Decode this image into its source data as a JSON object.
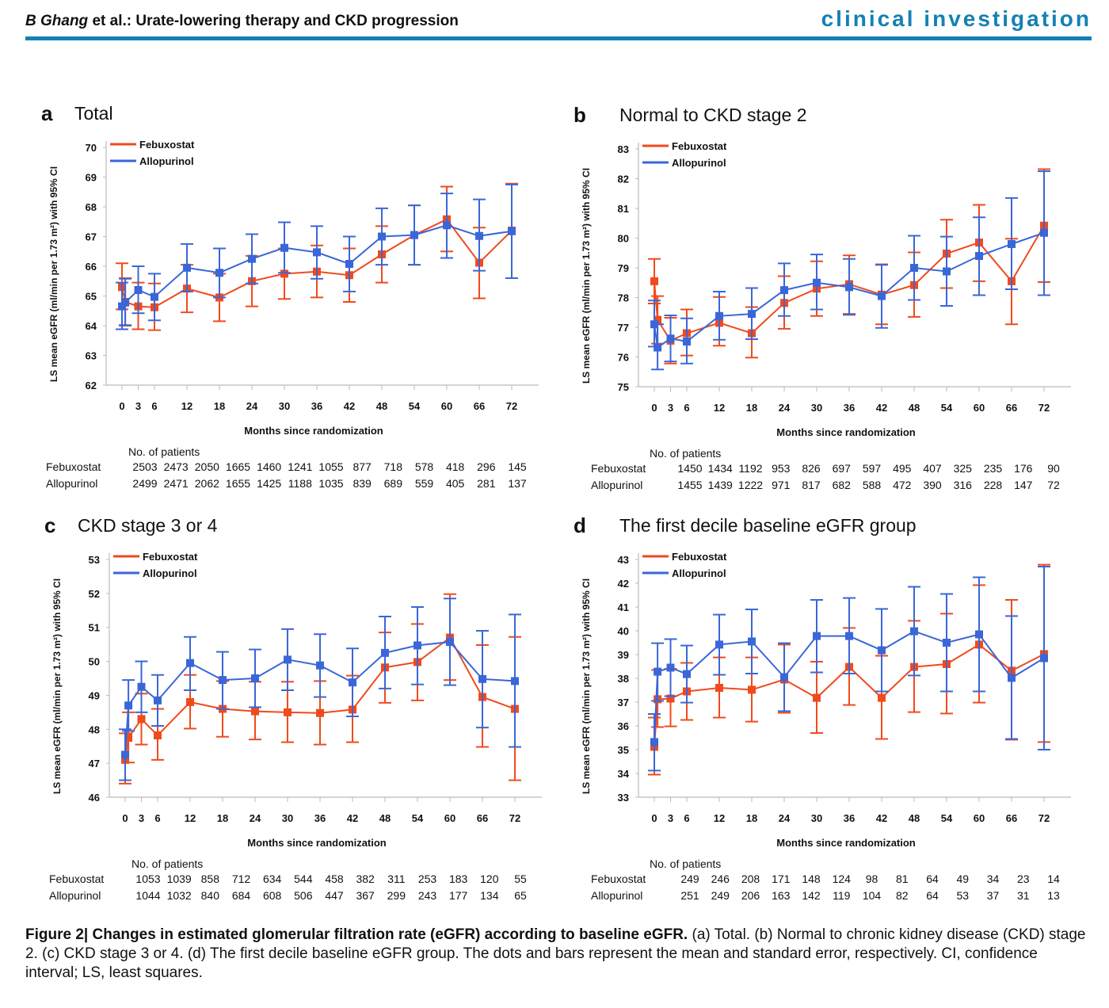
{
  "header": {
    "author": "B Ghang",
    "title_rest": " et al.: Urate-lowering therapy and CKD progression",
    "section": "clinical investigation"
  },
  "colors": {
    "febuxostat": "#f04a1d",
    "allopurinol": "#3a66d8",
    "brand": "#1481b3"
  },
  "caption": {
    "figure_label": "Figure 2",
    "bold_title": "Changes in estimated glomerular filtration rate (eGFR) according to baseline eGFR.",
    "text": " (a) Total. (b) Normal to chronic kidney disease (CKD) stage 2. (c) CKD stage 3 or 4. (d) The first decile baseline eGFR group. The dots and bars represent the mean and standard error, respectively. CI, confidence interval; LS, least squares."
  },
  "chart_data": [
    {
      "type": "line",
      "panel": "a",
      "title": "Total",
      "xlabel": "Months since  randomization",
      "ylabel": "LS mean eGFR (ml/min per 1.73 m²) with  95% CI",
      "ylim": [
        62,
        70
      ],
      "yticks": [
        62,
        63,
        64,
        65,
        66,
        67,
        68,
        69,
        70
      ],
      "xticks": [
        0,
        3,
        6,
        12,
        18,
        24,
        30,
        36,
        42,
        48,
        54,
        60,
        66,
        72
      ],
      "legend": "top-left",
      "grid": false,
      "x": [
        0,
        0.6,
        3,
        6,
        12,
        18,
        24,
        30,
        36,
        42,
        48,
        54,
        60,
        66,
        72
      ],
      "series": [
        {
          "name": "Febuxostat",
          "values": [
            65.3,
            64.8,
            64.65,
            64.62,
            65.25,
            64.95,
            65.5,
            65.75,
            65.82,
            65.7,
            66.4,
            67.05,
            67.58,
            66.12,
            67.2
          ],
          "lower": [
            64.55,
            64.0,
            63.88,
            63.85,
            64.45,
            64.15,
            64.65,
            64.9,
            64.95,
            64.8,
            65.45,
            66.05,
            66.5,
            64.92,
            65.6
          ],
          "upper": [
            66.1,
            65.6,
            65.45,
            65.42,
            66.05,
            65.75,
            66.35,
            66.6,
            66.7,
            66.6,
            67.35,
            68.05,
            68.68,
            67.3,
            68.78
          ]
        },
        {
          "name": "Allopurinol",
          "values": [
            64.65,
            64.78,
            65.2,
            64.97,
            65.95,
            65.78,
            66.25,
            66.62,
            66.47,
            66.08,
            67.0,
            67.05,
            67.38,
            67.02,
            67.18
          ],
          "lower": [
            63.88,
            64.02,
            64.42,
            64.18,
            65.15,
            64.95,
            65.42,
            65.78,
            65.58,
            65.15,
            66.05,
            66.05,
            66.28,
            65.85,
            65.6
          ],
          "upper": [
            65.45,
            65.58,
            66.0,
            65.75,
            66.75,
            66.6,
            67.08,
            67.48,
            67.35,
            67.0,
            67.95,
            68.05,
            68.45,
            68.25,
            68.75
          ]
        }
      ],
      "patients": {
        "title": "No. of patients",
        "rows": [
          {
            "label": "Febuxostat",
            "values": [
              "2503",
              "2473",
              "2050",
              "1665",
              "1460",
              "1241",
              "1055",
              "877",
              "718",
              "578",
              "418",
              "296",
              "145"
            ]
          },
          {
            "label": "Allopurinol",
            "values": [
              "2499",
              "2471",
              "2062",
              "1655",
              "1425",
              "1188",
              "1035",
              "839",
              "689",
              "559",
              "405",
              "281",
              "137"
            ]
          }
        ]
      }
    },
    {
      "type": "line",
      "panel": "b",
      "title": "Normal to CKD stage 2",
      "xlabel": "Months since  randomization",
      "ylabel": "LS mean eGFR (ml/min per 1.73 m²) with  95% CI",
      "ylim": [
        75,
        83
      ],
      "yticks": [
        75,
        76,
        77,
        78,
        79,
        80,
        81,
        82,
        83
      ],
      "xticks": [
        0,
        3,
        6,
        12,
        18,
        24,
        30,
        36,
        42,
        48,
        54,
        60,
        66,
        72
      ],
      "legend": "top-left",
      "grid": false,
      "x": [
        0,
        0.6,
        3,
        6,
        12,
        18,
        24,
        30,
        36,
        42,
        48,
        54,
        60,
        66,
        72
      ],
      "series": [
        {
          "name": "Febuxostat",
          "values": [
            78.55,
            77.25,
            76.55,
            76.8,
            77.15,
            76.8,
            77.82,
            78.3,
            78.45,
            78.1,
            78.42,
            79.48,
            79.85,
            78.55,
            80.42
          ],
          "lower": [
            77.8,
            76.45,
            75.78,
            76.05,
            76.38,
            75.98,
            76.95,
            77.38,
            77.45,
            77.1,
            77.35,
            78.32,
            78.55,
            77.1,
            78.52
          ],
          "upper": [
            79.3,
            78.05,
            77.32,
            77.6,
            78.02,
            77.68,
            78.72,
            79.22,
            79.42,
            79.12,
            79.52,
            80.62,
            81.12,
            79.98,
            82.32
          ]
        },
        {
          "name": "Allopurinol",
          "values": [
            77.1,
            76.32,
            76.62,
            76.52,
            77.38,
            77.45,
            78.25,
            78.5,
            78.35,
            78.05,
            79.0,
            78.88,
            79.4,
            79.8,
            80.18
          ],
          "lower": [
            76.35,
            75.58,
            75.85,
            75.78,
            76.58,
            76.6,
            77.38,
            77.6,
            77.42,
            76.98,
            77.92,
            77.72,
            78.08,
            78.28,
            78.08
          ],
          "upper": [
            77.9,
            77.1,
            77.4,
            77.3,
            78.2,
            78.32,
            79.15,
            79.45,
            79.3,
            79.1,
            80.08,
            80.05,
            80.7,
            81.35,
            82.25
          ]
        }
      ],
      "patients": {
        "title": "No. of patients",
        "rows": [
          {
            "label": "Febuxostat",
            "values": [
              "1450",
              "1434",
              "1192",
              "953",
              "826",
              "697",
              "597",
              "495",
              "407",
              "325",
              "235",
              "176",
              "90"
            ]
          },
          {
            "label": "Allopurinol",
            "values": [
              "1455",
              "1439",
              "1222",
              "971",
              "817",
              "682",
              "588",
              "472",
              "390",
              "316",
              "228",
              "147",
              "72"
            ]
          }
        ]
      }
    },
    {
      "type": "line",
      "panel": "c",
      "title": "CKD stage 3 or 4",
      "xlabel": "Months since  randomization",
      "ylabel": "LS mean eGFR (ml/min per 1.73 m²) with  95% CI",
      "ylim": [
        46,
        53
      ],
      "yticks": [
        46,
        47,
        48,
        49,
        50,
        51,
        52,
        53
      ],
      "xticks": [
        0,
        3,
        6,
        12,
        18,
        24,
        30,
        36,
        42,
        48,
        54,
        60,
        66,
        72
      ],
      "legend": "top-left",
      "grid": false,
      "x": [
        0,
        0.6,
        3,
        6,
        12,
        18,
        24,
        30,
        36,
        42,
        48,
        54,
        60,
        66,
        72
      ],
      "series": [
        {
          "name": "Febuxostat",
          "values": [
            47.1,
            47.75,
            48.3,
            47.82,
            48.8,
            48.6,
            48.53,
            48.5,
            48.48,
            48.58,
            49.82,
            49.98,
            50.7,
            48.95,
            48.6
          ],
          "lower": [
            46.4,
            47.02,
            47.55,
            47.1,
            48.02,
            47.78,
            47.7,
            47.62,
            47.55,
            47.62,
            48.78,
            48.85,
            49.45,
            47.48,
            46.5
          ],
          "upper": [
            47.88,
            48.5,
            49.05,
            48.6,
            49.6,
            49.42,
            49.4,
            49.4,
            49.42,
            49.58,
            50.85,
            51.1,
            51.98,
            50.48,
            50.72
          ]
        },
        {
          "name": "Allopurinol",
          "values": [
            47.25,
            48.7,
            49.25,
            48.85,
            49.95,
            49.45,
            49.5,
            50.05,
            49.88,
            49.38,
            50.25,
            50.47,
            50.57,
            49.48,
            49.42
          ],
          "lower": [
            46.5,
            47.95,
            48.5,
            48.1,
            49.15,
            48.6,
            48.65,
            49.15,
            48.95,
            48.38,
            49.2,
            49.32,
            49.3,
            48.05,
            47.48
          ],
          "upper": [
            48.0,
            49.45,
            50.0,
            49.6,
            50.72,
            50.28,
            50.35,
            50.95,
            50.8,
            50.38,
            51.32,
            51.6,
            51.85,
            50.9,
            51.38
          ]
        }
      ],
      "patients": {
        "title": "No. of patients",
        "rows": [
          {
            "label": "Febuxostat",
            "values": [
              "1053",
              "1039",
              "858",
              "712",
              "634",
              "544",
              "458",
              "382",
              "311",
              "253",
              "183",
              "120",
              "55"
            ]
          },
          {
            "label": "Allopurinol",
            "values": [
              "1044",
              "1032",
              "840",
              "684",
              "608",
              "506",
              "447",
              "367",
              "299",
              "243",
              "177",
              "134",
              "65"
            ]
          }
        ]
      }
    },
    {
      "type": "line",
      "panel": "d",
      "title": "The first decile baseline eGFR group",
      "xlabel": "Months since  randomization",
      "ylabel": "LS mean eGFR (ml/min per 1.73 m²) with  95% CI",
      "ylim": [
        33,
        43
      ],
      "yticks": [
        33,
        34,
        35,
        36,
        37,
        38,
        39,
        40,
        41,
        42,
        43
      ],
      "xticks": [
        0,
        3,
        6,
        12,
        18,
        24,
        30,
        36,
        42,
        48,
        54,
        60,
        66,
        72
      ],
      "legend": "top-left",
      "grid": false,
      "x": [
        0,
        0.6,
        3,
        6,
        12,
        18,
        24,
        30,
        36,
        42,
        48,
        54,
        60,
        66,
        72
      ],
      "series": [
        {
          "name": "Febuxostat",
          "values": [
            35.12,
            37.12,
            37.15,
            37.45,
            37.6,
            37.52,
            37.95,
            37.18,
            38.48,
            37.18,
            38.48,
            38.6,
            39.42,
            38.32,
            39.02
          ],
          "lower": [
            33.95,
            35.95,
            35.98,
            36.25,
            36.35,
            36.18,
            36.55,
            35.7,
            36.88,
            35.45,
            36.58,
            36.52,
            36.98,
            35.42,
            35.32
          ],
          "upper": [
            36.35,
            38.35,
            38.4,
            38.65,
            38.88,
            38.88,
            39.42,
            38.7,
            40.12,
            38.95,
            40.42,
            40.72,
            41.92,
            41.3,
            42.78
          ]
        },
        {
          "name": "Allopurinol",
          "values": [
            35.32,
            38.28,
            38.45,
            38.18,
            39.42,
            39.55,
            38.05,
            39.78,
            39.78,
            39.18,
            39.98,
            39.5,
            39.85,
            38.02,
            38.85
          ],
          "lower": [
            34.12,
            37.05,
            37.25,
            36.98,
            38.15,
            38.2,
            36.62,
            38.25,
            38.2,
            37.45,
            38.12,
            37.45,
            37.45,
            35.45,
            35.0
          ],
          "upper": [
            36.5,
            39.48,
            39.65,
            39.38,
            40.68,
            40.9,
            39.48,
            41.3,
            41.38,
            40.92,
            41.85,
            41.55,
            42.25,
            40.62,
            42.7
          ]
        }
      ],
      "patients": {
        "title": "No. of patients",
        "rows": [
          {
            "label": "Febuxostat",
            "values": [
              "249",
              "246",
              "208",
              "171",
              "148",
              "124",
              "98",
              "81",
              "64",
              "49",
              "34",
              "23",
              "14"
            ]
          },
          {
            "label": "Allopurinol",
            "values": [
              "251",
              "249",
              "206",
              "163",
              "142",
              "119",
              "104",
              "82",
              "64",
              "53",
              "37",
              "31",
              "13"
            ]
          }
        ]
      }
    }
  ]
}
